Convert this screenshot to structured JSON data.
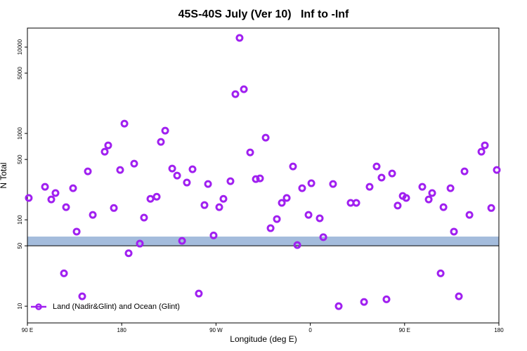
{
  "chart_data": {
    "type": "scatter",
    "title": "45S-40S July (Ver 10)   Inf to -Inf",
    "xlabel": "Longitude (deg E)",
    "ylabel": "N Total",
    "log_y": true,
    "xlim": [
      90,
      540
    ],
    "xticks": [
      {
        "value": 90,
        "label": "90 E"
      },
      {
        "value": 180,
        "label": "180"
      },
      {
        "value": 270,
        "label": "90 W"
      },
      {
        "value": 360,
        "label": "0"
      },
      {
        "value": 450,
        "label": "90 E"
      },
      {
        "value": 540,
        "label": "180"
      }
    ],
    "ylim": [
      6.4,
      16600
    ],
    "yticks": [
      10,
      50,
      100,
      500,
      1000,
      5000,
      10000
    ],
    "hline": 50,
    "band": [
      50,
      64
    ],
    "band_color": "#a4bcdc",
    "legend": "lower left",
    "series": [
      {
        "name": "Land (Nadir&Glint) and Ocean (Glint)",
        "color": "#a020f0",
        "x": [
          91.3,
          106.8,
          112.8,
          116.8,
          124.9,
          126.9,
          133.6,
          137,
          142.3,
          147.7,
          152.4,
          163.8,
          167.1,
          172.5,
          178.5,
          182.6,
          186.6,
          191.9,
          197.3,
          201.3,
          207.4,
          213.4,
          217.4,
          221.5,
          228.2,
          232.9,
          237.6,
          242.2,
          247.6,
          253.6,
          259,
          262.4,
          267.7,
          273.1,
          277.1,
          283.8,
          288.5,
          292.5,
          296.6,
          302.6,
          308,
          312,
          317.4,
          322.1,
          328.1,
          332.8,
          337.5,
          343.5,
          347.6,
          352.2,
          358.3,
          361,
          369,
          372.4,
          381.7,
          387.1,
          398.5,
          403.9,
          411.3,
          416.6,
          423.3,
          428,
          432.7,
          438.1,
          443.4,
          448.2,
          451.5,
          466.9,
          473,
          476.3,
          484.4,
          487.1,
          493.8,
          497.1,
          501.8,
          507.2,
          511.9,
          523.3,
          526.6,
          532.7,
          538
        ],
        "values": [
          179,
          241,
          172,
          204,
          24,
          140,
          232,
          73,
          13,
          364,
          114,
          615,
          728,
          137,
          378,
          1300,
          41,
          447,
          53,
          106,
          175,
          185,
          798,
          1078,
          392,
          325,
          57,
          270,
          385,
          14,
          148,
          260,
          66,
          140,
          175,
          280,
          2850,
          12770,
          3250,
          603,
          296,
          302,
          894,
          80,
          102,
          157,
          179,
          415,
          51,
          232,
          114,
          265,
          104,
          63,
          260,
          10,
          157,
          157,
          11.2,
          241,
          415,
          308,
          12,
          344,
          146,
          189,
          179,
          241,
          172,
          204,
          24,
          140,
          232,
          73,
          13,
          364,
          114,
          615,
          728,
          137,
          378
        ]
      }
    ]
  }
}
